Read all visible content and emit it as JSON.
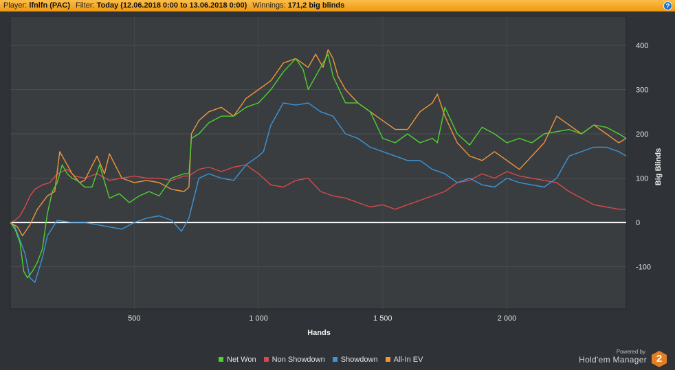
{
  "header": {
    "player_label": "Player:",
    "player_value": "lfnlfn (PAC)",
    "filter_label": "Filter:",
    "filter_value": "Today (12.06.2018 0:00 to 13.06.2018 0:00)",
    "winnings_label": "Winnings:",
    "winnings_value": "171,2 big blinds",
    "help_icon": "question-circle-icon",
    "help_glyph": "?"
  },
  "chart_data": {
    "type": "line",
    "xlabel": "Hands",
    "ylabel": "Big Blinds",
    "xlim": [
      1,
      2480
    ],
    "ylim": [
      -195,
      465
    ],
    "x_ticks": [
      500,
      1000,
      1500,
      2000
    ],
    "x_tick_labels": [
      "500",
      "1 000",
      "1 500",
      "2 000"
    ],
    "y_ticks": [
      -100,
      0,
      100,
      200,
      300,
      400
    ],
    "y_tick_labels": [
      "-100",
      "0",
      "100",
      "200",
      "300",
      "400"
    ],
    "y_axis_position": "right",
    "grid": true,
    "legend_position": "bottom",
    "series": [
      {
        "name": "Net Won",
        "color": "#4fd12f",
        "x": [
          1,
          20,
          40,
          55,
          70,
          90,
          110,
          130,
          150,
          170,
          190,
          210,
          230,
          250,
          270,
          300,
          330,
          360,
          400,
          440,
          480,
          520,
          560,
          600,
          650,
          700,
          720,
          730,
          760,
          800,
          850,
          900,
          950,
          1000,
          1050,
          1100,
          1150,
          1180,
          1200,
          1250,
          1280,
          1300,
          1350,
          1400,
          1450,
          1500,
          1550,
          1600,
          1650,
          1700,
          1720,
          1750,
          1800,
          1850,
          1900,
          1950,
          2000,
          2050,
          2100,
          2150,
          2200,
          2250,
          2300,
          2350,
          2400,
          2450,
          2480
        ],
        "y": [
          0,
          -15,
          -45,
          -110,
          -125,
          -110,
          -90,
          -60,
          20,
          70,
          90,
          130,
          110,
          100,
          95,
          80,
          80,
          130,
          55,
          65,
          45,
          60,
          70,
          60,
          100,
          110,
          110,
          190,
          200,
          225,
          240,
          240,
          260,
          270,
          300,
          340,
          370,
          345,
          300,
          350,
          380,
          330,
          270,
          270,
          250,
          190,
          180,
          200,
          180,
          190,
          180,
          260,
          200,
          175,
          215,
          200,
          180,
          190,
          180,
          200,
          205,
          210,
          200,
          220,
          215,
          200,
          190
        ]
      },
      {
        "name": "Non Showdown",
        "color": "#d9484a",
        "x": [
          1,
          20,
          40,
          60,
          80,
          100,
          130,
          160,
          190,
          210,
          230,
          260,
          300,
          350,
          400,
          450,
          500,
          550,
          600,
          650,
          700,
          720,
          760,
          800,
          850,
          900,
          950,
          1000,
          1050,
          1100,
          1150,
          1200,
          1250,
          1300,
          1350,
          1400,
          1450,
          1500,
          1550,
          1600,
          1650,
          1700,
          1750,
          1800,
          1850,
          1900,
          1950,
          2000,
          2050,
          2100,
          2150,
          2200,
          2250,
          2300,
          2350,
          2400,
          2450,
          2480
        ],
        "y": [
          0,
          5,
          15,
          35,
          60,
          75,
          85,
          90,
          110,
          115,
          120,
          105,
          100,
          110,
          95,
          100,
          105,
          100,
          100,
          95,
          105,
          105,
          120,
          125,
          115,
          125,
          130,
          110,
          85,
          80,
          95,
          100,
          70,
          60,
          55,
          45,
          35,
          40,
          30,
          40,
          50,
          60,
          70,
          90,
          95,
          110,
          100,
          115,
          105,
          100,
          95,
          90,
          70,
          55,
          40,
          35,
          30,
          30
        ]
      },
      {
        "name": "Showdown",
        "color": "#3b95d9",
        "x": [
          1,
          20,
          40,
          60,
          80,
          100,
          130,
          150,
          190,
          250,
          300,
          400,
          450,
          500,
          550,
          600,
          650,
          690,
          720,
          760,
          800,
          850,
          900,
          950,
          1000,
          1020,
          1050,
          1100,
          1150,
          1200,
          1250,
          1300,
          1350,
          1400,
          1450,
          1500,
          1550,
          1600,
          1650,
          1700,
          1750,
          1800,
          1850,
          1900,
          1950,
          2000,
          2050,
          2100,
          2150,
          2200,
          2250,
          2300,
          2350,
          2400,
          2450,
          2480
        ],
        "y": [
          0,
          -10,
          -40,
          -70,
          -125,
          -135,
          -80,
          -30,
          5,
          0,
          0,
          -10,
          -15,
          0,
          10,
          15,
          5,
          -20,
          10,
          100,
          110,
          100,
          95,
          130,
          150,
          160,
          220,
          270,
          265,
          270,
          250,
          240,
          200,
          190,
          170,
          160,
          150,
          140,
          140,
          120,
          110,
          90,
          100,
          85,
          80,
          100,
          90,
          85,
          80,
          100,
          150,
          160,
          170,
          170,
          160,
          150
        ]
      },
      {
        "name": "All-In EV",
        "color": "#f0963a",
        "x": [
          1,
          30,
          50,
          80,
          110,
          150,
          180,
          200,
          230,
          250,
          280,
          300,
          350,
          380,
          400,
          450,
          500,
          550,
          600,
          650,
          700,
          720,
          730,
          760,
          800,
          850,
          900,
          950,
          1000,
          1050,
          1100,
          1150,
          1200,
          1230,
          1260,
          1280,
          1300,
          1320,
          1350,
          1400,
          1450,
          1500,
          1550,
          1600,
          1650,
          1700,
          1720,
          1750,
          1800,
          1850,
          1900,
          1950,
          2000,
          2050,
          2100,
          2150,
          2200,
          2250,
          2300,
          2350,
          2400,
          2450,
          2480
        ],
        "y": [
          0,
          -10,
          -30,
          -5,
          30,
          60,
          70,
          160,
          130,
          110,
          90,
          95,
          150,
          110,
          155,
          100,
          90,
          95,
          90,
          75,
          70,
          80,
          200,
          230,
          250,
          260,
          240,
          280,
          300,
          320,
          360,
          370,
          350,
          380,
          350,
          390,
          370,
          330,
          300,
          270,
          250,
          230,
          210,
          210,
          250,
          270,
          290,
          240,
          180,
          150,
          140,
          160,
          140,
          120,
          150,
          180,
          240,
          220,
          200,
          220,
          200,
          180,
          190
        ]
      }
    ]
  },
  "footer": {
    "powered_by": "Powered by",
    "brand": "Hold'em Manager",
    "brand_badge": "2",
    "brand_icon": "hm2-logo-icon"
  }
}
